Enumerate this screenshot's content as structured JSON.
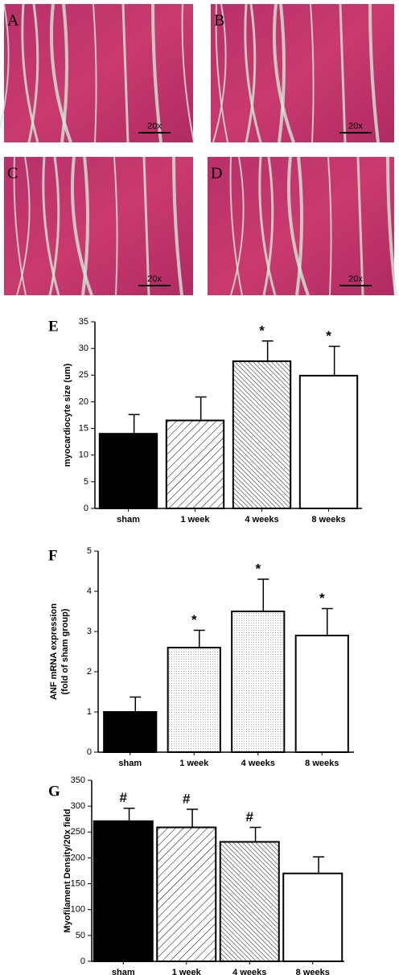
{
  "panels": [
    {
      "label": "A",
      "scale": "20x"
    },
    {
      "label": "B",
      "scale": "20x"
    },
    {
      "label": "C",
      "scale": "20x"
    },
    {
      "label": "D",
      "scale": "20x"
    }
  ],
  "chart_data": [
    {
      "type": "bar",
      "title": "E",
      "ylabel": [
        "myocardiocyte size (um)"
      ],
      "categories": [
        "sham",
        "1 week",
        "4 weeks",
        "8 weeks"
      ],
      "values": [
        14,
        16.5,
        27.6,
        24.9
      ],
      "errors": [
        3.6,
        4.4,
        3.8,
        5.5
      ],
      "markers": [
        null,
        null,
        "*",
        "*"
      ],
      "ylim": [
        0,
        35
      ],
      "yticks": [
        0,
        5,
        10,
        15,
        20,
        25,
        30,
        35
      ]
    },
    {
      "type": "bar",
      "title": "F",
      "ylabel": [
        "ANF mRNA expression",
        "(fold of sham group)"
      ],
      "categories": [
        "sham",
        "1 week",
        "4 weeks",
        "8 weeks"
      ],
      "values": [
        1.0,
        2.6,
        3.5,
        2.9
      ],
      "errors": [
        0.37,
        0.43,
        0.8,
        0.67
      ],
      "markers": [
        null,
        "*",
        "*",
        "*"
      ],
      "ylim": [
        0,
        5
      ],
      "yticks": [
        0,
        1,
        2,
        3,
        4,
        5
      ]
    },
    {
      "type": "bar",
      "title": "G",
      "ylabel": [
        "Myofilament Density/20x field"
      ],
      "categories": [
        "sham",
        "1 week",
        "4 weeks",
        "8 weeks"
      ],
      "values": [
        271,
        259,
        231,
        170
      ],
      "errors": [
        25,
        35,
        28,
        32
      ],
      "markers": [
        "#",
        "#",
        "#",
        null
      ],
      "ylim": [
        0,
        350
      ],
      "yticks": [
        0,
        50,
        100,
        150,
        200,
        250,
        300,
        350
      ]
    }
  ]
}
